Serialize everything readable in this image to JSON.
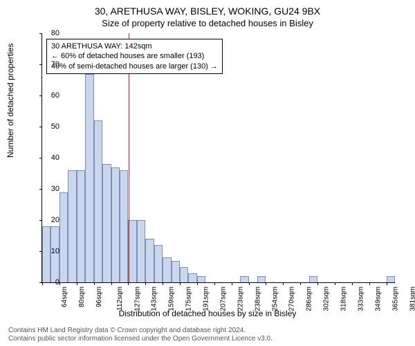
{
  "title_main": "30, ARETHUSA WAY, BISLEY, WOKING, GU24 9BX",
  "title_sub": "Size of property relative to detached houses in Bisley",
  "ylabel": "Number of detached properties",
  "xlabel": "Distribution of detached houses by size in Bisley",
  "footer_line1": "Contains HM Land Registry data © Crown copyright and database right 2024.",
  "footer_line2": "Contains public sector information licensed under the Open Government Licence v3.0.",
  "chart": {
    "type": "bar",
    "ymax": 80,
    "ytick_step": 10,
    "bar_fill": "#c9d6ec",
    "bar_stroke": "#7a8fb8",
    "background": "#ffffff",
    "reference_line_color": "#d11a1a",
    "reference_value_sqm": 142,
    "xtick_labels": [
      "64sqm",
      "80sqm",
      "96sqm",
      "112sqm",
      "127sqm",
      "143sqm",
      "159sqm",
      "175sqm",
      "191sqm",
      "207sqm",
      "223sqm",
      "238sqm",
      "254sqm",
      "270sqm",
      "286sqm",
      "302sqm",
      "318sqm",
      "333sqm",
      "349sqm",
      "365sqm",
      "381sqm"
    ],
    "bar_heights": [
      18,
      18,
      29,
      36,
      36,
      67,
      52,
      38,
      37,
      36,
      20,
      20,
      14,
      12,
      8,
      7,
      5,
      3,
      2,
      0,
      0,
      0,
      0,
      2,
      0,
      2,
      0,
      0,
      0,
      0,
      0,
      2,
      0,
      0,
      0,
      0,
      0,
      0,
      0,
      0,
      2
    ]
  },
  "annotation": {
    "line1": "30 ARETHUSA WAY: 142sqm",
    "line2": "← 60% of detached houses are smaller (193)",
    "line3": "40% of semi-detached houses are larger (130) →"
  },
  "fontsize": {
    "title": 14,
    "subtitle": 13,
    "axis_label": 12,
    "tick": 11,
    "xtick": 10,
    "annotation": 11,
    "footer": 10
  }
}
